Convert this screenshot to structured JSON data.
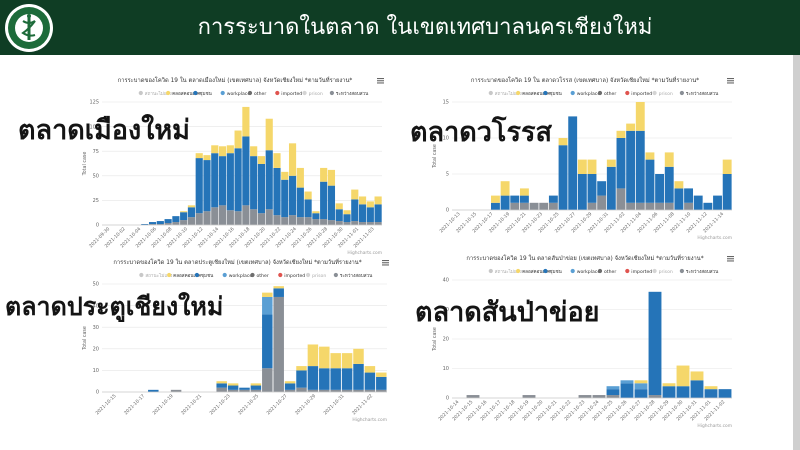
{
  "header": {
    "title": "การระบาดในตลาด ในเขตเทศบาลนครเชียงใหม่",
    "logo_text_top": "กรมควบคุมโรค",
    "logo_text_bottom": "MINISTRY OF PUBLIC HEALTH"
  },
  "colors": {
    "header_bg": "#0f3d24",
    "unknown": "#c8c8c8",
    "close_contact": "#f5d76a",
    "cluster": "#2574b8",
    "workplace": "#5a9fd4",
    "other": "#6e6e6e",
    "imported": "#e0544f",
    "prison": "#d4d4d4",
    "regular_visit": "#8a8f96"
  },
  "chart_data": [
    {
      "type": "bar",
      "stacked": true,
      "market_label": "ตลาดเมืองใหม่",
      "title": "การระบาดของโควิด 19 ใน ตลาดเมืองใหม่ (เขตเทศบาล) จังหวัดเชียงใหม่ *ตามวันที่รายงาน*",
      "ylabel": "Total case",
      "ylim": [
        0,
        125
      ],
      "yticks": [
        0,
        25,
        50,
        75,
        100,
        125
      ],
      "credit": "Highcharts.com",
      "legend": [
        "สถานะไม่แจ้ง",
        "คลอสคอนเทค",
        "ชุมชน",
        "workplace",
        "other",
        "imported",
        "prison",
        "ระหว่างสอบสวน"
      ],
      "x_ticks": [
        "2021-09-30",
        "2021-10-02",
        "2021-10-04",
        "2021-10-06",
        "2021-10-08",
        "2021-10-10",
        "2021-10-12",
        "2021-10-14",
        "2021-10-16",
        "2021-10-18",
        "2021-10-20",
        "2021-10-22",
        "2021-10-24",
        "2021-10-26",
        "2021-10-28",
        "2021-10-30",
        "2021-11-01",
        "2021-11-03"
      ],
      "series": [
        {
          "name": "ระหว่างสอบสวน",
          "color": "#8a8f96",
          "values": [
            0,
            0,
            0,
            0,
            0,
            0,
            1,
            1,
            2,
            3,
            5,
            8,
            12,
            14,
            18,
            20,
            15,
            14,
            20,
            16,
            12,
            16,
            10,
            8,
            10,
            8,
            8,
            6,
            6,
            5,
            4,
            3,
            4,
            3,
            3,
            3
          ]
        },
        {
          "name": "ชุมชน",
          "color": "#2574b8",
          "values": [
            0,
            0,
            0,
            0,
            0,
            1,
            2,
            3,
            4,
            6,
            8,
            10,
            56,
            52,
            55,
            50,
            58,
            64,
            70,
            54,
            50,
            60,
            48,
            38,
            40,
            30,
            18,
            6,
            38,
            35,
            12,
            8,
            22,
            18,
            15,
            18
          ]
        },
        {
          "name": "คลอสคอนเทค",
          "color": "#f5d76a",
          "values": [
            0,
            0,
            0,
            0,
            0,
            0,
            0,
            0,
            0,
            0,
            1,
            2,
            5,
            5,
            8,
            10,
            8,
            18,
            30,
            10,
            8,
            32,
            15,
            8,
            33,
            20,
            8,
            2,
            14,
            16,
            6,
            4,
            10,
            8,
            6,
            8
          ]
        }
      ]
    },
    {
      "type": "bar",
      "stacked": true,
      "market_label": "ตลาดวโรรส",
      "title": "การระบาดของโควิด 19 ใน ตลาดวโรรส (เขตเทศบาล) จังหวัดเชียงใหม่ *ตามวันที่รายงาน*",
      "ylabel": "Total case",
      "ylim": [
        0,
        15
      ],
      "yticks": [
        0,
        5,
        10,
        15
      ],
      "credit": "Highcharts.com",
      "legend": [
        "สถานะไม่แจ้ง",
        "คลอสคอนเทค",
        "ชุมชน",
        "workplace",
        "other",
        "imported",
        "prison",
        "ระหว่างสอบสวน"
      ],
      "x_ticks": [
        "2021-10-13",
        "2021-10-15",
        "2021-10-17",
        "2021-10-19",
        "2021-10-21",
        "2021-10-23",
        "2021-10-25",
        "2021-10-27",
        "2021-10-29",
        "2021-10-31",
        "2021-11-02",
        "2021-11-04",
        "2021-11-06",
        "2021-11-08",
        "2021-11-10",
        "2021-11-12",
        "2021-11-14"
      ],
      "series": [
        {
          "name": "ระหว่างสอบสวน",
          "color": "#8a8f96",
          "values": [
            0,
            0,
            0,
            0,
            0,
            0,
            1,
            1,
            1,
            1,
            1,
            0,
            0,
            0,
            1,
            2,
            0,
            3,
            1,
            1,
            1,
            1,
            1,
            0,
            1,
            0,
            0,
            0,
            0
          ]
        },
        {
          "name": "ชุมชน",
          "color": "#2574b8",
          "values": [
            0,
            0,
            0,
            0,
            1,
            2,
            1,
            1,
            0,
            0,
            1,
            9,
            13,
            5,
            4,
            2,
            6,
            7,
            10,
            10,
            6,
            4,
            5,
            3,
            2,
            2,
            1,
            2,
            5
          ]
        },
        {
          "name": "คลอสคอนเทค",
          "color": "#f5d76a",
          "values": [
            0,
            0,
            0,
            0,
            1,
            2,
            0,
            1,
            0,
            0,
            0,
            1,
            0,
            2,
            2,
            0,
            1,
            1,
            1,
            4,
            1,
            0,
            2,
            1,
            0,
            0,
            0,
            0,
            2
          ]
        }
      ]
    },
    {
      "type": "bar",
      "stacked": true,
      "market_label": "ตลาดประตูเชียงใหม่",
      "title": "การระบาดของโควิด 19 ใน ตลาดประตูเชียงใหม่ (เขตเทศบาล) จังหวัดเชียงใหม่ *ตามวันที่รายงาน*",
      "ylabel": "Total case",
      "ylim": [
        0,
        50
      ],
      "yticks": [
        0,
        10,
        20,
        30,
        40,
        50
      ],
      "credit": "Highcharts.com",
      "legend": [
        "สถานะไม่แจ้ง",
        "คลอสคอนเทค",
        "ชุมชน",
        "workplace",
        "other",
        "imported",
        "prison",
        "ระหว่างสอบสวน"
      ],
      "x_ticks": [
        "2021-10-15",
        "2021-10-17",
        "2021-10-19",
        "2021-10-21",
        "2021-10-23",
        "2021-10-25",
        "2021-10-27",
        "2021-10-29",
        "2021-10-31",
        "2021-11-02"
      ],
      "series": [
        {
          "name": "ระหว่างสอบสวน",
          "color": "#8a8f96",
          "values": [
            0,
            0,
            0,
            0,
            0,
            0,
            1,
            0,
            0,
            0,
            2,
            1,
            1,
            1,
            11,
            44,
            1,
            2,
            1,
            1,
            1,
            1,
            1,
            1,
            1
          ]
        },
        {
          "name": "ชุมชน",
          "color": "#2574b8",
          "values": [
            0,
            0,
            0,
            0,
            1,
            0,
            0,
            0,
            0,
            0,
            2,
            2,
            1,
            2,
            25,
            4,
            3,
            8,
            11,
            10,
            10,
            10,
            12,
            8,
            6
          ]
        },
        {
          "name": "workplace",
          "color": "#5a9fd4",
          "values": [
            0,
            0,
            0,
            0,
            0,
            0,
            0,
            0,
            0,
            0,
            0,
            0,
            0,
            0,
            8,
            0,
            0,
            0,
            0,
            0,
            0,
            0,
            0,
            0,
            0
          ]
        },
        {
          "name": "คลอสคอนเทค",
          "color": "#f5d76a",
          "values": [
            0,
            0,
            0,
            0,
            0,
            0,
            0,
            0,
            0,
            0,
            1,
            1,
            0,
            1,
            2,
            1,
            1,
            2,
            10,
            10,
            7,
            7,
            7,
            3,
            2
          ]
        }
      ]
    },
    {
      "type": "bar",
      "stacked": true,
      "market_label": "ตลาดสันป่าข่อย",
      "title": "การระบาดของโควิด 19 ใน ตลาดสันป่าข่อย (เขตเทศบาล) จังหวัดเชียงใหม่ *ตามวันที่รายงาน*",
      "ylabel": "Total case",
      "ylim": [
        0,
        40
      ],
      "yticks": [
        0,
        10,
        20,
        30,
        40
      ],
      "credit": "Highcharts.com",
      "legend": [
        "สถานะไม่แจ้ง",
        "คลอสคอนเทค",
        "ชุมชน",
        "workplace",
        "other",
        "imported",
        "prison",
        "ระหว่างสอบสวน"
      ],
      "x_ticks": [
        "2021-10-14",
        "2021-10-15",
        "2021-10-16",
        "2021-10-17",
        "2021-10-18",
        "2021-10-19",
        "2021-10-20",
        "2021-10-21",
        "2021-10-22",
        "2021-10-23",
        "2021-10-24",
        "2021-10-25",
        "2021-10-26",
        "2021-10-27",
        "2021-10-28",
        "2021-10-29",
        "2021-10-30",
        "2021-10-31",
        "2021-11-01",
        "2021-11-02"
      ],
      "series": [
        {
          "name": "ระหว่างสอบสวน",
          "color": "#8a8f96",
          "values": [
            0,
            1,
            0,
            0,
            0,
            1,
            0,
            0,
            0,
            1,
            1,
            1,
            0,
            0,
            1,
            0,
            0,
            0,
            0,
            0
          ]
        },
        {
          "name": "ชุมชน",
          "color": "#2574b8",
          "values": [
            0,
            0,
            0,
            0,
            0,
            0,
            0,
            0,
            0,
            0,
            0,
            2,
            5,
            3,
            35,
            4,
            4,
            6,
            3,
            3
          ]
        },
        {
          "name": "workplace",
          "color": "#5a9fd4",
          "values": [
            0,
            0,
            0,
            0,
            0,
            0,
            0,
            0,
            0,
            0,
            0,
            1,
            1,
            2,
            0,
            0,
            0,
            0,
            0,
            0
          ]
        },
        {
          "name": "คลอสคอนเทค",
          "color": "#f5d76a",
          "values": [
            0,
            0,
            0,
            0,
            0,
            0,
            0,
            0,
            0,
            0,
            0,
            0,
            0,
            1,
            0,
            1,
            7,
            3,
            1,
            0
          ]
        }
      ]
    }
  ]
}
